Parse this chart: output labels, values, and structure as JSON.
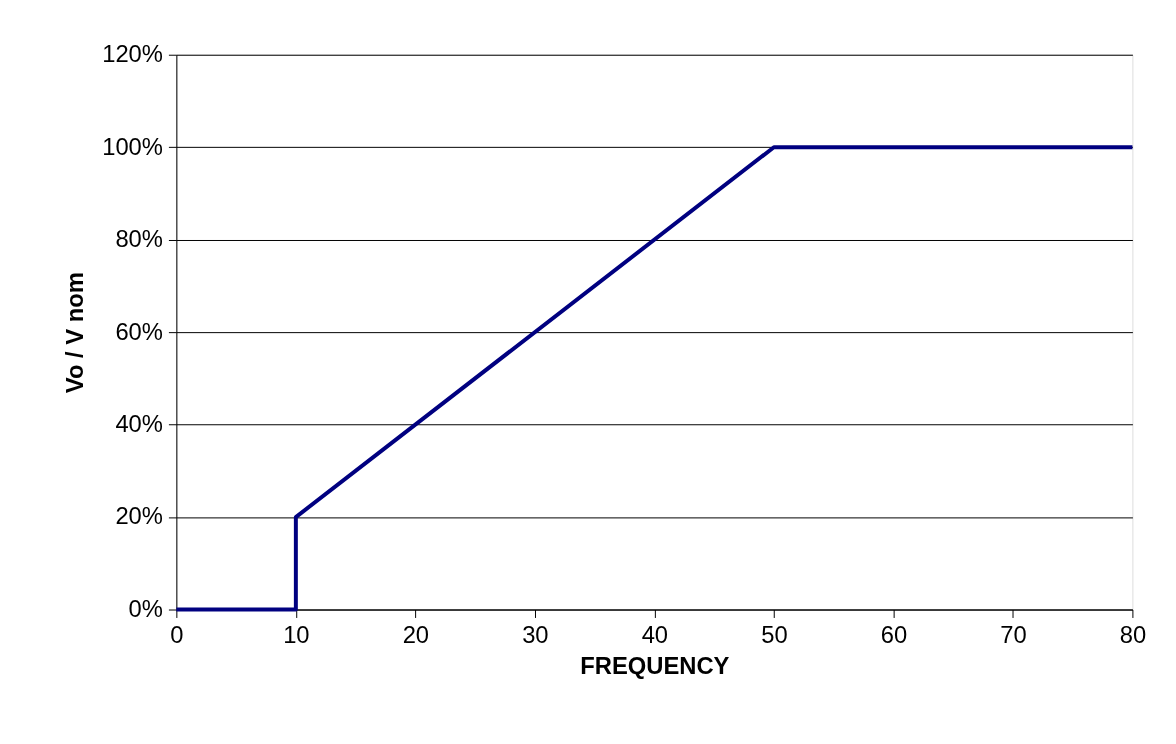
{
  "chart_data": {
    "type": "line",
    "xlabel": "FREQUENCY",
    "ylabel": "Vo / V nom",
    "x": [
      0,
      10,
      10,
      50,
      80
    ],
    "series": [
      {
        "color": "#000080",
        "values": [
          0,
          0,
          20,
          100,
          100
        ]
      }
    ],
    "xlim": [
      0,
      80
    ],
    "xticks": [
      0,
      10,
      20,
      30,
      40,
      50,
      60,
      70,
      80
    ],
    "ylim": [
      0,
      120
    ],
    "yticks": [
      {
        "value": 0,
        "label": "0%"
      },
      {
        "value": 20,
        "label": "20%"
      },
      {
        "value": 40,
        "label": "40%"
      },
      {
        "value": 60,
        "label": "60%"
      },
      {
        "value": 80,
        "label": "80%"
      },
      {
        "value": 100,
        "label": "100%"
      },
      {
        "value": 120,
        "label": "120%"
      }
    ],
    "grid": "y",
    "marker": "none",
    "line_style": "solid"
  }
}
